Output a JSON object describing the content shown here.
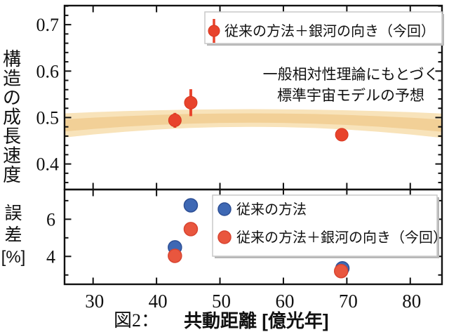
{
  "figure": {
    "caption_prefix": "図2：",
    "x_axis_label": "共動距離 [億光年]"
  },
  "colors": {
    "red": "#e8432c",
    "red_stroke": "#d63820",
    "red_fill_soft": "#e9563e",
    "red_soft_stroke": "#d84430",
    "blue_fill": "#3e68b4",
    "blue_stroke": "#2d4f95",
    "band_outer": "#f8e3ba",
    "band_inner": "#f2d097",
    "axis": "#111111",
    "legend_border": "#c9c9c9",
    "legend_shadow": "#b7b7b7",
    "legend_bg": "#ffffff"
  },
  "chart_data": [
    {
      "type": "scatter",
      "panel": "top",
      "ylabel": "構造の成長速度",
      "xlim": [
        25.5,
        85
      ],
      "ylim": [
        0.345,
        0.741
      ],
      "xticks": [
        30,
        40,
        50,
        60,
        70,
        80
      ],
      "yticks": [
        0.4,
        0.5,
        0.6,
        0.7
      ],
      "ytick_labels": [
        "0.4",
        "0.5",
        "0.6",
        "0.7"
      ],
      "y_minor_step": 0.02,
      "grid": false,
      "legend_position": "upper right",
      "legend": [
        {
          "label": "従来の方法＋銀河の向き（今回）",
          "marker": "red-point-with-errorbar"
        }
      ],
      "annotation": {
        "lines": [
          "一般相対性理論にもとづく",
          "標準宇宙モデルの予想"
        ],
        "refers_to": "band"
      },
      "series": [
        {
          "name": "従来の方法＋銀河の向き（今回）",
          "color_key": "red",
          "x": [
            42.9,
            45.4,
            69.2
          ],
          "y": [
            0.494,
            0.532,
            0.463
          ],
          "yerr": [
            0.016,
            0.029,
            0.014
          ]
        }
      ],
      "band": {
        "name": "一般相対性理論にもとづく標準宇宙モデルの予想",
        "x": [
          25.5,
          30,
          35,
          40,
          45,
          50,
          55,
          60,
          65,
          70,
          75,
          80,
          85
        ],
        "center": [
          0.483,
          0.4875,
          0.4916,
          0.4949,
          0.4972,
          0.4985,
          0.499,
          0.4985,
          0.4972,
          0.4949,
          0.4916,
          0.4875,
          0.4824
        ],
        "outer_half_width": [
          0.026,
          0.024,
          0.0222,
          0.0208,
          0.0198,
          0.0192,
          0.019,
          0.0192,
          0.0198,
          0.0208,
          0.0222,
          0.024,
          0.0262
        ],
        "inner_half_width": [
          0.013,
          0.0122,
          0.0114,
          0.0108,
          0.0104,
          0.0101,
          0.01,
          0.0101,
          0.0104,
          0.0108,
          0.0114,
          0.0122,
          0.0132
        ]
      }
    },
    {
      "type": "scatter",
      "panel": "bottom",
      "ylabel": "誤差 [%]",
      "ylabel_lines": [
        "誤",
        "差",
        "[%]"
      ],
      "xlabel": "共動距離 [億光年]",
      "xlim": [
        25.5,
        85
      ],
      "ylim": [
        2.5,
        7.6
      ],
      "xticks": [
        30,
        40,
        50,
        60,
        70,
        80
      ],
      "xtick_labels": [
        "30",
        "40",
        "50",
        "60",
        "70",
        "80"
      ],
      "yticks": [
        4,
        6
      ],
      "ytick_labels": [
        "4",
        "6"
      ],
      "y_minor_ticks": [
        3,
        5,
        7
      ],
      "grid": false,
      "legend_position": "right",
      "legend": [
        {
          "label": "従来の方法",
          "color_key": "blue"
        },
        {
          "label": "従来の方法＋銀河の向き（今回）",
          "color_key": "red"
        }
      ],
      "series": [
        {
          "name": "従来の方法",
          "color_key": "blue",
          "x": [
            42.9,
            45.4,
            69.3
          ],
          "y": [
            4.49,
            6.75,
            3.36
          ]
        },
        {
          "name": "従来の方法＋銀河の向き（今回）",
          "color_key": "red",
          "x": [
            42.9,
            45.4,
            69.1
          ],
          "y": [
            4.03,
            5.47,
            3.21
          ]
        }
      ]
    }
  ]
}
